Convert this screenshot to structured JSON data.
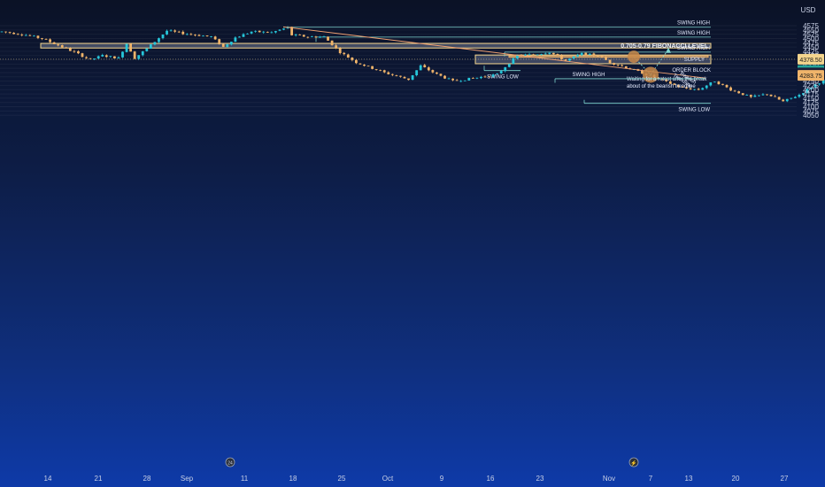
{
  "chart_data": {
    "type": "candlestick",
    "currency": "USD",
    "y_ticks": [
      4575,
      4550,
      4525,
      4500,
      4475,
      4450,
      4425,
      4400,
      4375,
      4350,
      4325,
      4300,
      4275,
      4250,
      4225,
      4200,
      4175,
      4150,
      4125,
      4100,
      4075,
      4050
    ],
    "ylim": [
      4050,
      4583
    ],
    "x_ticks": [
      "14",
      "21",
      "28",
      "Sep",
      "11",
      "18",
      "25",
      "Oct",
      "9",
      "16",
      "23",
      "Nov",
      "7",
      "13",
      "20",
      "27"
    ],
    "price_tags": [
      {
        "value": "4378.50",
        "bg": "#f4d58d",
        "fg": "#1a1a1a"
      },
      {
        "value": "4312.25",
        "bg": "#26a69a",
        "fg": "#ffffff"
      },
      {
        "value": "4297.75",
        "bg": "#1b1f3a",
        "fg": "#e6ecff"
      },
      {
        "value": "4283.75",
        "bg": "#f0b46a",
        "fg": "#1a1a1a"
      }
    ],
    "last_price": 4378.5,
    "fib_zone": {
      "label": "0.705-0.79 FIBONACCI LEVEL",
      "low": 4444,
      "high": 4471
    },
    "order_block": {
      "label": "ORDER BLOCK",
      "low": 4352,
      "high": 4403
    },
    "supply": {
      "label": "SUPPLY",
      "low": 4390,
      "high": 4398
    },
    "levels": [
      {
        "label": "SWING HIGH",
        "value": 4566
      },
      {
        "label": "SWING HIGH",
        "value": 4508
      },
      {
        "label": "SWING HIGH",
        "value": 4420
      },
      {
        "label": "SWING LOW",
        "value": 4312
      },
      {
        "label": "SWING HIGH",
        "value": 4264
      },
      {
        "label": "SWING LOW",
        "value": 4120
      }
    ],
    "trendline_label": "Bearish Trendline",
    "note": "Waiting for a retest after the break about of the bearish trendline",
    "event_icons": [
      "24",
      "⚡"
    ],
    "colors": {
      "up": "#26c6da",
      "down": "#f0b46a",
      "zone": "#f4d58d",
      "level": "#7fd6d0",
      "trend": "#f0a070"
    }
  }
}
